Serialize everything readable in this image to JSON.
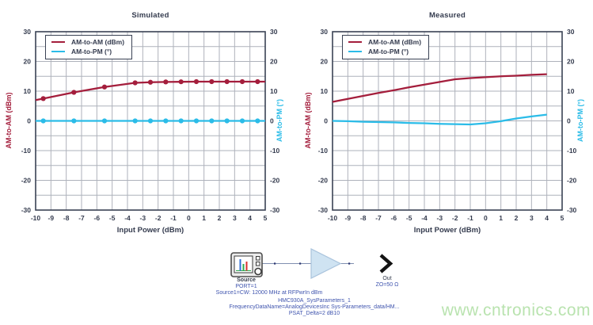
{
  "colors": {
    "am_am": "#A41E3C",
    "am_pm": "#2BBCE8",
    "axis_text": "#343B4E",
    "grid": "#AEB2BB",
    "plot_border": "#3A4254",
    "schematic_blue": "#3F54AE",
    "schematic_dark": "#333B4D",
    "amp_fill": "#CFE3F2",
    "amp_stroke": "#A9C3DC",
    "watermark": "#B9E3AF"
  },
  "chart_data": [
    {
      "type": "line",
      "title": "Simulated",
      "xlabel": "Input Power (dBm)",
      "ylabel_left": "AM-to-AM (dBm)",
      "ylabel_right": "AM-to-PM (°)",
      "xlim": [
        -10,
        5
      ],
      "ylim": [
        -30,
        30
      ],
      "x_ticks": [
        -10,
        -9,
        -8,
        -7,
        -6,
        -5,
        -4,
        -3,
        -2,
        -1,
        0,
        1,
        2,
        3,
        4,
        5
      ],
      "y_ticks": [
        -30,
        -20,
        -10,
        0,
        10,
        20,
        30
      ],
      "x_grid_step": 1,
      "y_grid_step": 5,
      "grid": true,
      "legend_position": "top-left-inside",
      "series": [
        {
          "name": "AM-to-AM (dBm)",
          "color": "#A41E3C",
          "axis": "left",
          "x": [
            -10,
            -9.5,
            -7.5,
            -5.5,
            -3.5,
            -2.5,
            -1.5,
            -0.5,
            0.5,
            1.5,
            2.5,
            3.5,
            4.5,
            5
          ],
          "y": [
            7.0,
            7.5,
            9.6,
            11.4,
            12.8,
            13.0,
            13.1,
            13.15,
            13.2,
            13.2,
            13.2,
            13.2,
            13.2,
            13.2
          ],
          "marker_x": [
            -9.5,
            -7.5,
            -5.5,
            -3.5,
            -2.5,
            -1.5,
            -0.5,
            0.5,
            1.5,
            2.5,
            3.5,
            4.5
          ],
          "marker_y": [
            7.5,
            9.6,
            11.4,
            12.8,
            13.0,
            13.1,
            13.15,
            13.2,
            13.2,
            13.2,
            13.2,
            13.2
          ]
        },
        {
          "name": "AM-to-PM (°)",
          "color": "#2BBCE8",
          "axis": "right",
          "x": [
            -10,
            5
          ],
          "y": [
            0,
            0
          ],
          "marker_x": [
            -9.5,
            -7.5,
            -5.5,
            -3.5,
            -2.5,
            -1.5,
            -0.5,
            0.5,
            1.5,
            2.5,
            3.5,
            4.5
          ],
          "marker_y": [
            0,
            0,
            0,
            0,
            0,
            0,
            0,
            0,
            0,
            0,
            0,
            0
          ]
        }
      ]
    },
    {
      "type": "line",
      "title": "Measured",
      "xlabel": "Input Power (dBm)",
      "ylabel_left": "AM-to-AM (dBm)",
      "ylabel_right": "AM-to-PM (°)",
      "xlim": [
        -10,
        5
      ],
      "ylim": [
        -30,
        30
      ],
      "x_ticks": [
        -10,
        -9,
        -8,
        -7,
        -6,
        -5,
        -4,
        -3,
        -2,
        -1,
        0,
        1,
        2,
        3,
        4,
        5
      ],
      "y_ticks": [
        -30,
        -20,
        -10,
        0,
        10,
        20,
        30
      ],
      "x_grid_step": 1,
      "y_grid_step": 5,
      "grid": true,
      "legend_position": "top-left-inside",
      "series": [
        {
          "name": "AM-to-AM (dBm)",
          "color": "#A41E3C",
          "axis": "left",
          "x": [
            -10,
            -9,
            -8,
            -7,
            -6,
            -5,
            -4,
            -3,
            -2,
            -1,
            0,
            1,
            2,
            3,
            4
          ],
          "y": [
            6.4,
            7.4,
            8.4,
            9.4,
            10.3,
            11.3,
            12.2,
            13.1,
            14.0,
            14.4,
            14.7,
            15.0,
            15.2,
            15.5,
            15.7
          ]
        },
        {
          "name": "AM-to-PM (°)",
          "color": "#2BBCE8",
          "axis": "right",
          "x": [
            -10,
            -9,
            -8,
            -7,
            -6,
            -5,
            -4,
            -3,
            -2,
            -1,
            0,
            1,
            2,
            3,
            4
          ],
          "y": [
            0.0,
            -0.1,
            -0.3,
            -0.4,
            -0.5,
            -0.7,
            -0.8,
            -1.0,
            -1.1,
            -1.2,
            -0.8,
            -0.1,
            0.8,
            1.5,
            2.1
          ]
        }
      ]
    }
  ],
  "schematic": {
    "source": {
      "title": "Source",
      "port": "PORT=1",
      "config": "Source1=CW: 12000 MHz at RFPwrIn dBm"
    },
    "amplifier": {
      "name": "HMC930A_SysParameters_1",
      "frequency_data": "FrequencyDataName=AnalogDevicesInc Sys-Parameters_data/HM...",
      "psat_delta": "PSAT_Delta=2 dB10"
    },
    "output": {
      "title": "Out",
      "impedance": "ZO=50 Ω"
    }
  },
  "watermark": {
    "text": "www.cntronics.com"
  }
}
